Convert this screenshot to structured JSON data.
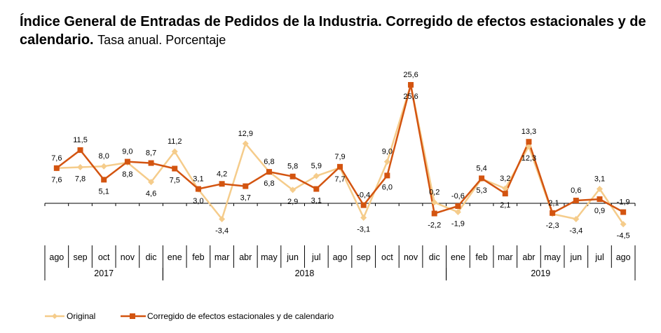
{
  "title": {
    "bold": "Índice General de Entradas de Pedidos de la Industria. Corregido de efectos estacionales y de calendario.",
    "normal": "Tasa anual. Porcentaje"
  },
  "colors": {
    "original": "#F5CC8B",
    "corregido": "#D35410",
    "axis": "#000000"
  },
  "chart_data": {
    "type": "line",
    "categories": [
      "ago",
      "sep",
      "oct",
      "nov",
      "dic",
      "ene",
      "feb",
      "mar",
      "abr",
      "may",
      "jun",
      "jul",
      "ago",
      "sep",
      "oct",
      "nov",
      "dic",
      "ene",
      "feb",
      "mar",
      "abr",
      "may",
      "jun",
      "jul",
      "ago"
    ],
    "years": [
      {
        "label": "2017",
        "from": 0,
        "to": 4
      },
      {
        "label": "2018",
        "from": 5,
        "to": 16
      },
      {
        "label": "2019",
        "from": 17,
        "to": 24
      }
    ],
    "series": [
      {
        "name": "Original",
        "marker": "diamond",
        "values": [
          7.6,
          7.8,
          8.0,
          8.8,
          4.6,
          11.2,
          3.0,
          -3.4,
          12.9,
          6.8,
          2.9,
          5.9,
          7.7,
          -3.1,
          9.0,
          25.6,
          0.2,
          -1.9,
          5.3,
          3.2,
          12.3,
          -2.3,
          -3.4,
          3.1,
          -4.5
        ],
        "labels": [
          "7,6",
          "7,8",
          "8,0",
          "8,8",
          "4,6",
          "11,2",
          "3,0",
          "-3,4",
          "12,9",
          "6,8",
          "2,9",
          "5,9",
          "7,7",
          "-3,1",
          "9,0",
          "25,6",
          "0,2",
          "-1,9",
          "5,3",
          "3,2",
          "12,3",
          "-2,3",
          "-3,4",
          "3,1",
          "-4,5"
        ]
      },
      {
        "name": "Corregido de efectos estacionales y de calendario",
        "marker": "square",
        "values": [
          7.6,
          11.5,
          5.1,
          9.0,
          8.7,
          7.5,
          3.1,
          4.2,
          3.7,
          6.8,
          5.8,
          3.1,
          7.9,
          -0.4,
          6.0,
          25.6,
          -2.2,
          -0.6,
          5.4,
          2.1,
          13.3,
          -2.1,
          0.6,
          0.9,
          -1.9
        ],
        "labels": [
          "7,6",
          "11,5",
          "5,1",
          "9,0",
          "8,7",
          "7,5",
          "3,1",
          "4,2",
          "3,7",
          "6,8",
          "5,8",
          "3,1",
          "7,9",
          "-0,4",
          "6,0",
          "25,6",
          "-2,2",
          "-0,6",
          "5,4",
          "2,1",
          "13,3",
          "-2,1",
          "0,6",
          "0,9",
          "-1,9"
        ]
      }
    ],
    "legend": [
      "Original",
      "Corregido de efectos estacionales y de calendario"
    ],
    "legend_position": "bottom-left",
    "grid": false
  }
}
